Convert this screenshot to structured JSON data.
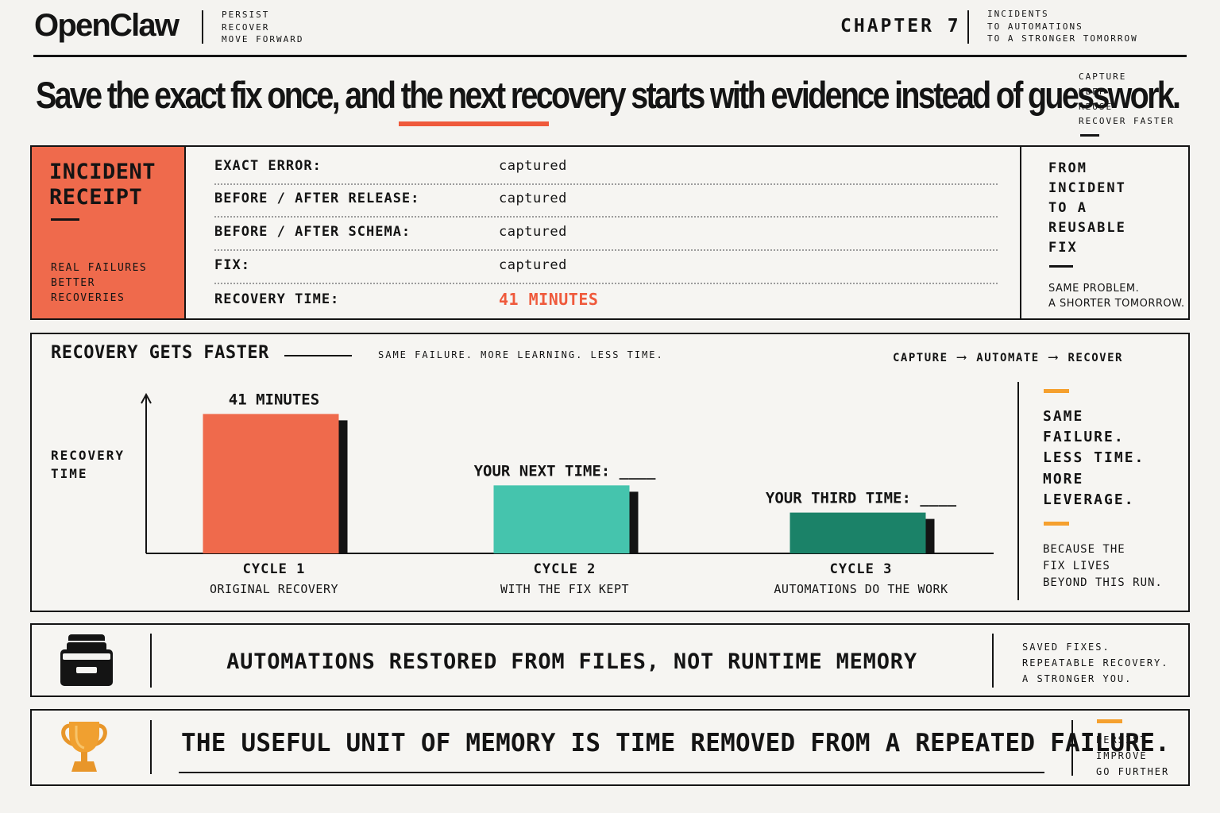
{
  "header": {
    "logo": "OpenClaw",
    "tagline": [
      "PERSIST",
      "RECOVER",
      "MOVE FORWARD"
    ],
    "chapter": "CHAPTER 7",
    "chapter_subtitle": [
      "INCIDENTS",
      "TO AUTOMATIONS",
      "TO A STRONGER TOMORROW"
    ]
  },
  "headline": {
    "part1": "Save the exact fix once, and ",
    "highlight": "the next",
    "part2": " recovery starts with evidence instead of guesswork.",
    "side_tags": [
      "CAPTURE",
      "KEEP",
      "REUSE",
      "RECOVER FASTER"
    ]
  },
  "colors": {
    "accent": "#ef5a3c",
    "coral": "#ef6a4c",
    "teal": "#45c4ad",
    "dark_teal": "#1b8268",
    "orange": "#f5a02e",
    "ink": "#141414"
  },
  "receipt": {
    "title_line1": "INCIDENT",
    "title_line2": "RECEIPT",
    "tags": [
      "REAL FAILURES",
      "BETTER",
      "RECOVERIES"
    ],
    "rows": [
      {
        "label": "EXACT ERROR:",
        "value": "captured"
      },
      {
        "label": "BEFORE / AFTER RELEASE:",
        "value": "captured"
      },
      {
        "label": "BEFORE / AFTER SCHEMA:",
        "value": "captured"
      },
      {
        "label": "FIX:",
        "value": "captured"
      },
      {
        "label": "RECOVERY TIME:",
        "value": "41 MINUTES"
      }
    ],
    "side_title": [
      "FROM",
      "INCIDENT",
      "TO A",
      "REUSABLE",
      "FIX"
    ],
    "side_note": [
      "SAME PROBLEM.",
      "A SHORTER TOMORROW."
    ]
  },
  "chart_panel": {
    "title": "RECOVERY GETS FASTER",
    "subtitle": "SAME FAILURE. MORE LEARNING. LESS TIME.",
    "flow": [
      "CAPTURE",
      "AUTOMATE",
      "RECOVER"
    ],
    "flow_arrow": "⟶",
    "side_statement": [
      "SAME",
      "FAILURE.",
      "LESS TIME.",
      "MORE",
      "LEVERAGE."
    ],
    "side_because": [
      "BECAUSE THE",
      "FIX LIVES",
      "BEYOND THIS RUN."
    ]
  },
  "chart_data": {
    "type": "bar",
    "ylabel": "RECOVERY TIME",
    "xlabel": "",
    "grid": false,
    "categories": [
      "CYCLE 1",
      "CYCLE 2",
      "CYCLE 3"
    ],
    "category_subtitles": [
      "ORIGINAL RECOVERY",
      "WITH THE FIX KEPT",
      "AUTOMATIONS DO THE WORK"
    ],
    "values": [
      41,
      20,
      12
    ],
    "value_labels": [
      "41 MINUTES",
      "YOUR NEXT TIME: ____",
      "YOUR THIRD TIME: ____"
    ],
    "ylim": [
      0,
      46
    ],
    "bar_colors": [
      "#ef6a4c",
      "#45c4ad",
      "#1b8268"
    ]
  },
  "banner1": {
    "icon": "file-cabinet-icon",
    "text": "AUTOMATIONS RESTORED FROM FILES, NOT RUNTIME MEMORY",
    "tags": [
      "SAVED FIXES.",
      "REPEATABLE RECOVERY.",
      "A STRONGER YOU."
    ]
  },
  "banner2": {
    "icon": "trophy-icon",
    "text": "THE USEFUL UNIT OF MEMORY IS TIME REMOVED FROM A REPEATED FAILURE.",
    "tags": [
      "PERSIST",
      "IMPROVE",
      "GO FURTHER"
    ]
  }
}
